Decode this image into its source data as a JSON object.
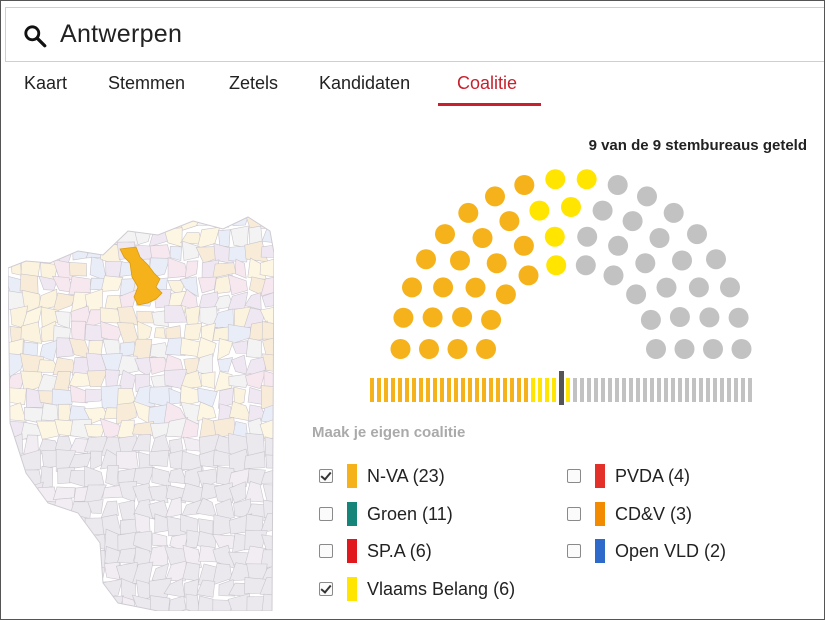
{
  "search": {
    "query": "Antwerpen",
    "icon": "search-icon"
  },
  "tabs": [
    {
      "label": "Kaart",
      "active": false
    },
    {
      "label": "Stemmen",
      "active": false
    },
    {
      "label": "Zetels",
      "active": false
    },
    {
      "label": "Kandidaten",
      "active": false
    },
    {
      "label": "Coalitie",
      "active": true
    }
  ],
  "counted": "9 van de 9 stembureaus geteld",
  "coalition": {
    "title": "Maak je eigen coalitie",
    "majority_seats": 28,
    "total_seats": 55,
    "parties": [
      {
        "name": "N-VA (23)",
        "seats": 23,
        "color": "#f5b21b",
        "checked": true
      },
      {
        "name": "Groen (11)",
        "seats": 11,
        "color": "#15857a",
        "checked": false
      },
      {
        "name": "SP.A (6)",
        "seats": 6,
        "color": "#e1191e",
        "checked": false
      },
      {
        "name": "Vlaams Belang (6)",
        "seats": 6,
        "color": "#ffe500",
        "checked": true
      },
      {
        "name": "PVDA (4)",
        "seats": 4,
        "color": "#e3312a",
        "checked": false
      },
      {
        "name": "CD&V (3)",
        "seats": 3,
        "color": "#f28b00",
        "checked": false
      },
      {
        "name": "Open VLD (2)",
        "seats": 2,
        "color": "#2d6ac9",
        "checked": false
      }
    ],
    "colors": {
      "coalition_a": "#f5b21b",
      "coalition_b": "#ffe500",
      "empty_seat": "#c2c2c2",
      "majority_marker": "#555555"
    }
  }
}
